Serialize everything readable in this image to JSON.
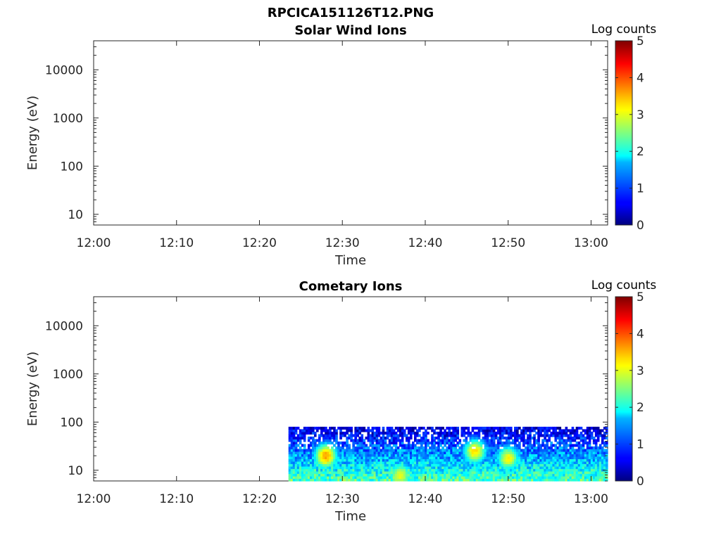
{
  "figure": {
    "title": "RPCICA151126T12.PNG",
    "colormap": "jet",
    "colors": {
      "axis": "#262626",
      "background": "#ffffff"
    }
  },
  "chart_data": [
    {
      "type": "heatmap",
      "title": "Solar Wind Ions",
      "xlabel": "Time",
      "ylabel": "Energy (eV)",
      "xlim": [
        "12:00",
        "13:02"
      ],
      "ylim": [
        6,
        40000
      ],
      "yscale": "log",
      "x_ticks": [
        "12:00",
        "12:10",
        "12:20",
        "12:30",
        "12:40",
        "12:50",
        "13:00"
      ],
      "y_ticks": [
        "10",
        "100",
        "1000",
        "10000"
      ],
      "colorbar": {
        "label": "Log counts",
        "range": [
          0,
          5
        ],
        "ticks": [
          "0",
          "1",
          "2",
          "3",
          "4",
          "5"
        ]
      },
      "data_note": "",
      "data": []
    },
    {
      "type": "heatmap",
      "title": "Cometary Ions",
      "xlabel": "Time",
      "ylabel": "Energy (eV)",
      "xlim": [
        "12:00",
        "13:02"
      ],
      "ylim": [
        6,
        40000
      ],
      "yscale": "log",
      "x_ticks": [
        "12:00",
        "12:10",
        "12:20",
        "12:30",
        "12:40",
        "12:50",
        "13:00"
      ],
      "y_ticks": [
        "10",
        "100",
        "1000",
        "10000"
      ],
      "colorbar": {
        "label": "Log counts",
        "range": [
          0,
          5
        ],
        "ticks": [
          "0",
          "1",
          "2",
          "3",
          "4",
          "5"
        ]
      },
      "data_coverage": {
        "time_start": "12:23.5",
        "time_end": "13:02",
        "energy_min": 6,
        "energy_max": 80
      },
      "hotspots": [
        {
          "time": "12:28",
          "energy": 20,
          "log_counts": 3.6
        },
        {
          "time": "12:46",
          "energy": 25,
          "log_counts": 3.3
        },
        {
          "time": "12:50",
          "energy": 18,
          "log_counts": 3.1
        },
        {
          "time": "12:37",
          "energy": 8,
          "log_counts": 3.0
        }
      ]
    }
  ]
}
